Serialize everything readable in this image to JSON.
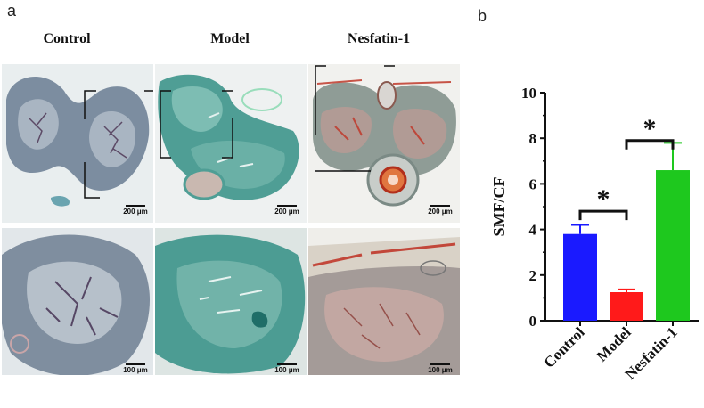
{
  "figure": {
    "panel_a_label": "a",
    "panel_b_label": "b",
    "column_titles": [
      "Control",
      "Model",
      "Nesfatin-1"
    ],
    "scale_top": [
      "200 μm",
      "200 μm",
      "200 μm"
    ],
    "scale_bottom": [
      "100 μm",
      "100 μm",
      "100 μm"
    ]
  },
  "colors": {
    "control": "#1a1aff",
    "model": "#ff1a1a",
    "nesfatin": "#1ec81e"
  },
  "chart_data": {
    "type": "bar",
    "categories": [
      "Control",
      "Model",
      "Nesfatin-1"
    ],
    "values": [
      3.8,
      1.25,
      6.6
    ],
    "errors": [
      0.4,
      0.12,
      1.2
    ],
    "colors": [
      "#1a1aff",
      "#ff1a1a",
      "#1ec81e"
    ],
    "ylabel": "SMF/CF",
    "ylim": [
      0,
      10
    ],
    "yticks": [
      0,
      2,
      4,
      6,
      8,
      10
    ],
    "significance": [
      {
        "from": "Control",
        "to": "Model",
        "label": "*"
      },
      {
        "from": "Model",
        "to": "Nesfatin-1",
        "label": "*"
      }
    ]
  }
}
